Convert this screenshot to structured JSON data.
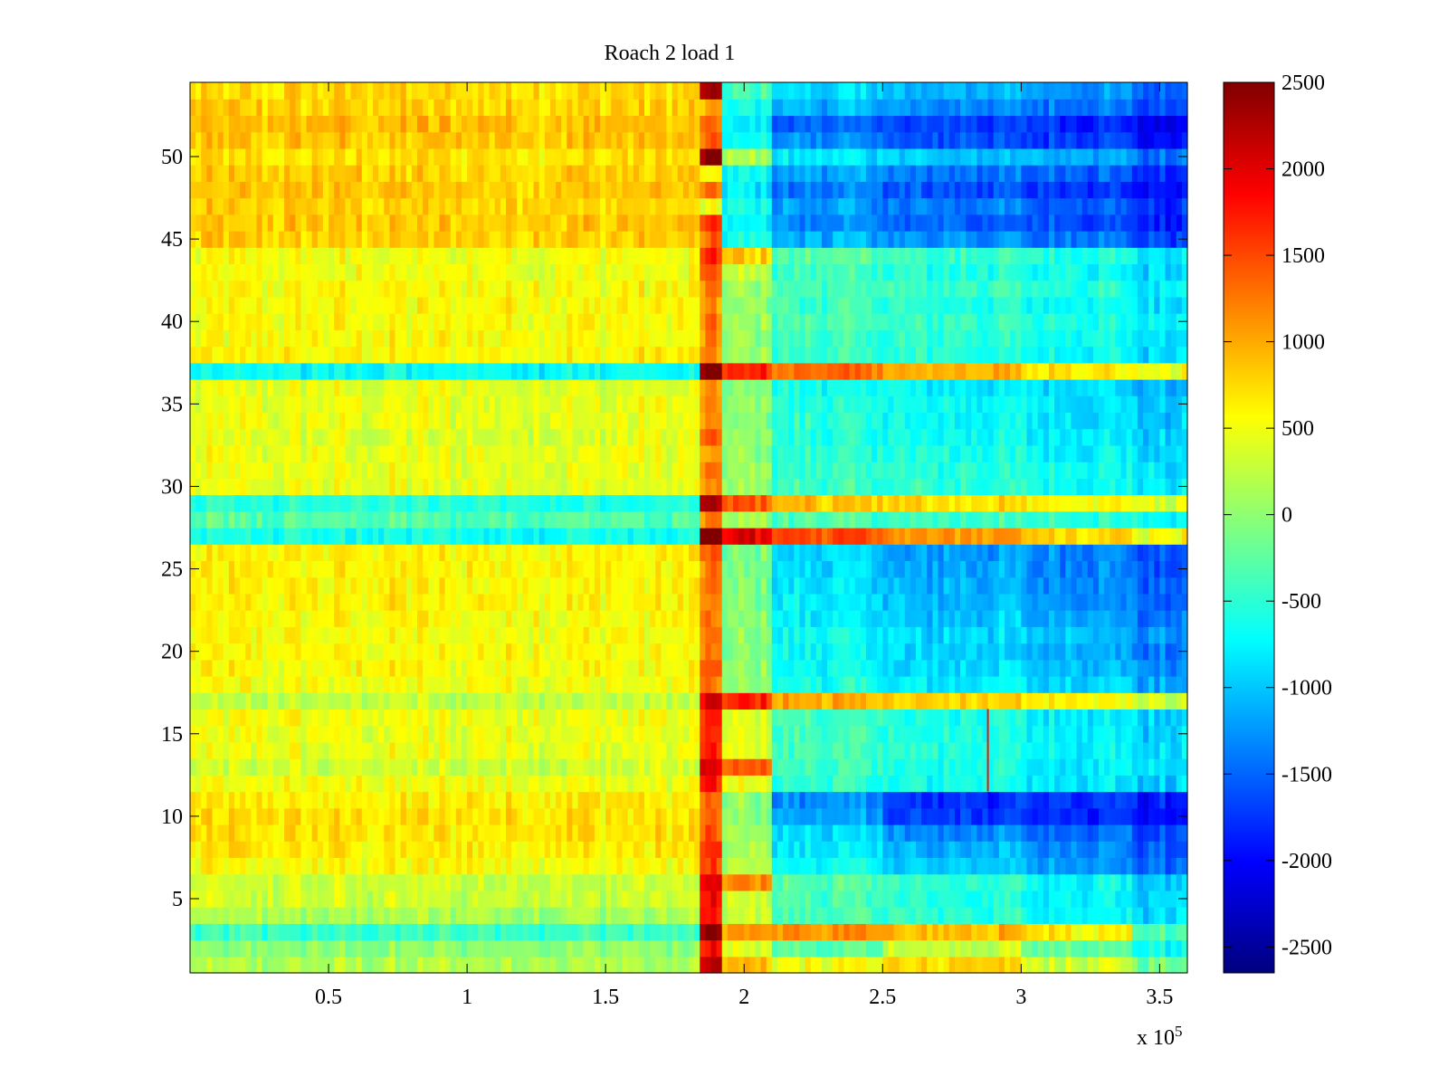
{
  "chart_data": {
    "type": "heatmap",
    "title": "Roach 2 load 1",
    "xlabel": "",
    "ylabel": "",
    "x_multiplier_label": "x 10",
    "x_multiplier_exponent": "5",
    "x_multiplier": 100000,
    "xlim": [
      0,
      3.6
    ],
    "ylim": [
      0.5,
      54.5
    ],
    "x_ticks": [
      {
        "value": 0.5,
        "label": "0.5"
      },
      {
        "value": 1,
        "label": "1"
      },
      {
        "value": 1.5,
        "label": "1.5"
      },
      {
        "value": 2,
        "label": "2"
      },
      {
        "value": 2.5,
        "label": "2.5"
      },
      {
        "value": 3,
        "label": "3"
      },
      {
        "value": 3.5,
        "label": "3.5"
      }
    ],
    "y_ticks": [
      {
        "value": 5,
        "label": "5"
      },
      {
        "value": 10,
        "label": "10"
      },
      {
        "value": 15,
        "label": "15"
      },
      {
        "value": 20,
        "label": "20"
      },
      {
        "value": 25,
        "label": "25"
      },
      {
        "value": 30,
        "label": "30"
      },
      {
        "value": 35,
        "label": "35"
      },
      {
        "value": 40,
        "label": "40"
      },
      {
        "value": 45,
        "label": "45"
      },
      {
        "value": 50,
        "label": "50"
      }
    ],
    "colorbar": {
      "colormap": "jet",
      "clim": [
        -2650,
        2500
      ],
      "ticks": [
        {
          "value": 2500,
          "label": "2500"
        },
        {
          "value": 2000,
          "label": "2000"
        },
        {
          "value": 1500,
          "label": "1500"
        },
        {
          "value": 1000,
          "label": "1000"
        },
        {
          "value": 500,
          "label": "500"
        },
        {
          "value": 0,
          "label": "0"
        },
        {
          "value": -500,
          "label": "-500"
        },
        {
          "value": -1000,
          "label": "-1000"
        },
        {
          "value": -1500,
          "label": "-1500"
        },
        {
          "value": -2000,
          "label": "-2000"
        },
        {
          "value": -2500,
          "label": "-2500"
        }
      ]
    },
    "grid": false,
    "row_count": 54,
    "x_segments": [
      0,
      1.85,
      1.93,
      2.1,
      2.5,
      3.0,
      3.4,
      3.6
    ],
    "approx_row_means": {
      "description_rows": "approximate mean value per row (rows 1..54) across each x segment",
      "default": [
        550,
        450,
        1600,
        150,
        -300,
        -550,
        -800
      ],
      "rows": {
        "1": [
          150,
          2200,
          900,
          500,
          750,
          350,
          -150
        ],
        "2": [
          0,
          1800,
          400,
          -300,
          300,
          -200,
          -700
        ],
        "3": [
          -450,
          2400,
          1100,
          1100,
          900,
          650,
          -300
        ],
        "4": [
          150,
          1700,
          300,
          -350,
          -500,
          -650,
          -900
        ],
        "5": [
          300,
          1800,
          300,
          -350,
          -550,
          -700,
          -950
        ],
        "6": [
          300,
          1900,
          1200,
          -300,
          -500,
          -650,
          -950
        ],
        "7": [
          550,
          1500,
          200,
          -700,
          -1000,
          -1200,
          -1500
        ],
        "8": [
          650,
          1600,
          150,
          -800,
          -1100,
          -1300,
          -1600
        ],
        "9": [
          700,
          1400,
          100,
          -900,
          -1300,
          -1400,
          -1700
        ],
        "10": [
          700,
          1300,
          0,
          -1200,
          -1700,
          -1800,
          -2000
        ],
        "11": [
          650,
          1300,
          0,
          -1300,
          -1800,
          -1700,
          -1900
        ],
        "12": [
          500,
          1700,
          500,
          -500,
          -650,
          -800,
          -1000
        ],
        "13": [
          300,
          2000,
          1300,
          -450,
          -600,
          -750,
          -900
        ],
        "14": [
          450,
          1700,
          400,
          -400,
          -550,
          -700,
          -900
        ],
        "15": [
          450,
          1600,
          350,
          -400,
          -550,
          -700,
          -950
        ],
        "16": [
          500,
          1600,
          350,
          -400,
          -600,
          -750,
          -950
        ],
        "17": [
          250,
          2000,
          1700,
          1000,
          800,
          600,
          300
        ],
        "18": [
          500,
          1200,
          0,
          -600,
          -800,
          -900,
          -1200
        ],
        "19": [
          550,
          1300,
          0,
          -700,
          -900,
          -1000,
          -1300
        ],
        "20": [
          550,
          1200,
          -50,
          -700,
          -950,
          -1100,
          -1400
        ],
        "21": [
          550,
          1300,
          0,
          -700,
          -900,
          -1000,
          -1300
        ],
        "22": [
          550,
          1200,
          -50,
          -800,
          -1000,
          -1100,
          -1450
        ],
        "23": [
          600,
          1200,
          -100,
          -800,
          -1050,
          -1200,
          -1500
        ],
        "24": [
          600,
          1300,
          -100,
          -850,
          -1100,
          -1250,
          -1550
        ],
        "25": [
          600,
          1200,
          -150,
          -900,
          -1150,
          -1300,
          -1600
        ],
        "26": [
          600,
          1300,
          -100,
          -900,
          -1200,
          -1300,
          -1650
        ],
        "27": [
          -650,
          2600,
          2000,
          1500,
          1100,
          800,
          500
        ],
        "28": [
          -300,
          1200,
          100,
          -350,
          -400,
          -500,
          -700
        ],
        "29": [
          -550,
          2300,
          1400,
          900,
          700,
          600,
          400
        ],
        "30": [
          450,
          1100,
          50,
          -400,
          -500,
          -600,
          -800
        ],
        "31": [
          450,
          1300,
          100,
          -450,
          -550,
          -650,
          -850
        ],
        "32": [
          450,
          1000,
          0,
          -500,
          -600,
          -700,
          -900
        ],
        "33": [
          400,
          1400,
          50,
          -550,
          -650,
          -750,
          -950
        ],
        "34": [
          450,
          1000,
          -50,
          -500,
          -700,
          -800,
          -1000
        ],
        "35": [
          450,
          1100,
          0,
          -550,
          -700,
          -800,
          -1050
        ],
        "36": [
          450,
          1100,
          -50,
          -600,
          -750,
          -850,
          -1100
        ],
        "37": [
          -700,
          2500,
          1700,
          1300,
          1000,
          700,
          500
        ],
        "38": [
          600,
          1100,
          0,
          -450,
          -550,
          -650,
          -900
        ],
        "39": [
          550,
          1100,
          0,
          -400,
          -500,
          -600,
          -850
        ],
        "40": [
          550,
          1200,
          50,
          -350,
          -450,
          -550,
          -800
        ],
        "41": [
          550,
          1000,
          0,
          -400,
          -550,
          -650,
          -900
        ],
        "42": [
          550,
          1100,
          50,
          -350,
          -450,
          -550,
          -800
        ],
        "43": [
          500,
          1400,
          300,
          -400,
          -550,
          -650,
          -900
        ],
        "44": [
          500,
          1600,
          800,
          -300,
          -450,
          -550,
          -800
        ],
        "45": [
          800,
          1300,
          -600,
          -1100,
          -1300,
          -1400,
          -1700
        ],
        "46": [
          850,
          1500,
          -700,
          -1300,
          -1500,
          -1600,
          -1900
        ],
        "47": [
          800,
          400,
          -700,
          -1200,
          -1400,
          -1500,
          -1800
        ],
        "48": [
          850,
          1200,
          -800,
          -1400,
          -1600,
          -1700,
          -2000
        ],
        "49": [
          800,
          500,
          -700,
          -1200,
          -1400,
          -1500,
          -1800
        ],
        "50": [
          700,
          2400,
          200,
          -800,
          -1000,
          -1100,
          -1400
        ],
        "51": [
          850,
          1300,
          -700,
          -1300,
          -1600,
          -1700,
          -2000
        ],
        "52": [
          900,
          1200,
          -800,
          -1500,
          -1700,
          -1800,
          -2100
        ],
        "53": [
          800,
          1000,
          -600,
          -1100,
          -1300,
          -1400,
          -1700
        ],
        "54": [
          750,
          2200,
          -400,
          -900,
          -1100,
          -1200,
          -1500
        ]
      }
    },
    "annotations": [
      {
        "type": "spike",
        "x": 2.88,
        "y_from": 11.5,
        "y_to": 16.5,
        "value": 1800
      }
    ]
  }
}
